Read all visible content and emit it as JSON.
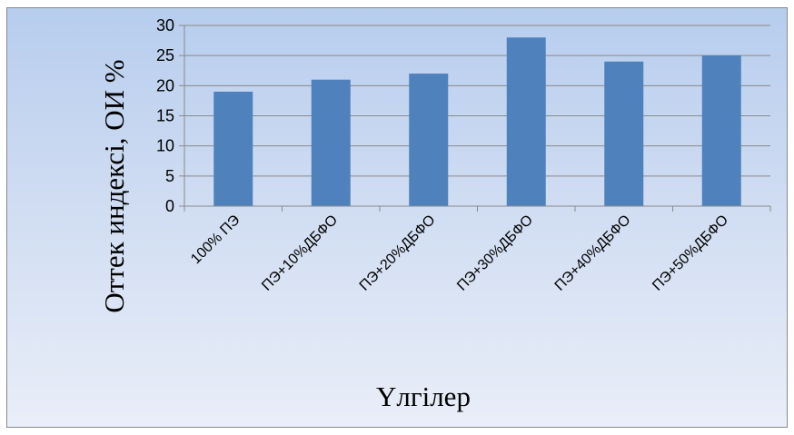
{
  "chart_data": {
    "type": "bar",
    "title": "",
    "xlabel": "Үлгілер",
    "ylabel": "Оттек   индексі, ОИ %",
    "categories": [
      "100% ПЭ",
      "ПЭ+10%ДБФО",
      "ПЭ+20%ДБФО",
      "ПЭ+30%ДБФО",
      "ПЭ+40%ДБФО",
      "ПЭ+50%ДБФО"
    ],
    "values": [
      19,
      21,
      22,
      28,
      24,
      25
    ],
    "ylim": [
      0,
      30
    ],
    "yticks": [
      0,
      5,
      10,
      15,
      20,
      25,
      30
    ],
    "grid": true,
    "legend": "none",
    "bar_color": "#4f81bd"
  }
}
